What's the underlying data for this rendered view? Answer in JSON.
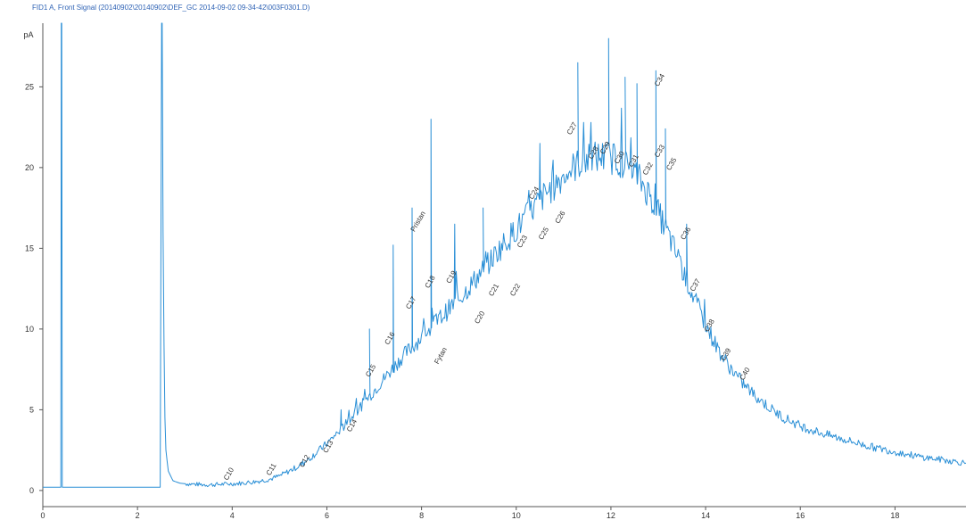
{
  "chart_data": {
    "type": "line",
    "title": "FID1 A, Front Signal (20140902\\20140902\\DEF_GC 2014-09-02 09-34-42\\003F0301.D)",
    "ylabel": "pA",
    "xlabel": "",
    "xlim": [
      0,
      19.5
    ],
    "ylim": [
      -1,
      28.5
    ],
    "x_ticks": [
      0,
      2,
      4,
      6,
      8,
      10,
      12,
      14,
      16,
      18
    ],
    "y_ticks": [
      0,
      5,
      10,
      15,
      20,
      25
    ],
    "grid": false,
    "series": [
      {
        "color": "#2a8fd6",
        "x": [
          0.0,
          0.35,
          0.38,
          0.39,
          0.4,
          0.41,
          0.45,
          2.48,
          2.51,
          2.52,
          2.54,
          2.56,
          2.58,
          2.6,
          2.65,
          2.75,
          2.9,
          3.1,
          3.5,
          3.9,
          4.2,
          4.5,
          4.8,
          5.0,
          5.2,
          5.4,
          5.6,
          5.8,
          6.0,
          6.2,
          6.4,
          6.6,
          6.8,
          7.0,
          7.2,
          7.4,
          7.6,
          7.8,
          8.0,
          8.2,
          8.4,
          8.6,
          8.8,
          9.0,
          9.2,
          9.4,
          9.6,
          9.8,
          10.0,
          10.2,
          10.4,
          10.6,
          10.8,
          11.0,
          11.2,
          11.4,
          11.6,
          11.8,
          12.0,
          12.2,
          12.4,
          12.6,
          12.8,
          13.0,
          13.2,
          13.4,
          13.6,
          13.8,
          14.0,
          14.2,
          14.4,
          14.6,
          14.8,
          15.0,
          15.2,
          15.4,
          15.6,
          15.8,
          16.0,
          16.5,
          17.0,
          17.5,
          18.0,
          18.5,
          19.0,
          19.5
        ],
        "y": [
          0.2,
          0.2,
          0.2,
          31,
          31,
          0.2,
          0.2,
          0.2,
          30,
          30,
          16,
          9,
          4.5,
          2.5,
          1.2,
          0.6,
          0.45,
          0.4,
          0.35,
          0.4,
          0.45,
          0.55,
          0.7,
          0.9,
          1.2,
          1.5,
          1.9,
          2.4,
          2.9,
          3.5,
          4.1,
          4.8,
          5.5,
          6.2,
          6.9,
          7.6,
          8.3,
          8.9,
          9.5,
          10.1,
          10.7,
          11.3,
          11.9,
          12.6,
          13.3,
          14.0,
          14.8,
          15.5,
          16.2,
          16.9,
          17.6,
          18.3,
          18.9,
          19.5,
          20.0,
          20.4,
          20.6,
          20.7,
          20.6,
          20.4,
          20.0,
          19.3,
          18.4,
          17.2,
          15.9,
          14.5,
          13.0,
          11.6,
          10.3,
          9.1,
          8.1,
          7.3,
          6.6,
          6.0,
          5.5,
          5.0,
          4.6,
          4.3,
          4.0,
          3.5,
          3.1,
          2.7,
          2.4,
          2.1,
          1.9,
          1.7
        ]
      }
    ],
    "peaks": [
      {
        "x": 8.2,
        "y": 23.0
      },
      {
        "x": 7.8,
        "y": 17.5
      },
      {
        "x": 7.4,
        "y": 15.2
      },
      {
        "x": 6.9,
        "y": 10.0
      },
      {
        "x": 11.3,
        "y": 26.5
      },
      {
        "x": 11.95,
        "y": 28.0
      },
      {
        "x": 12.3,
        "y": 25.6
      },
      {
        "x": 12.55,
        "y": 25.2
      },
      {
        "x": 12.95,
        "y": 26.0
      },
      {
        "x": 13.15,
        "y": 22.4
      },
      {
        "x": 10.5,
        "y": 21.5
      },
      {
        "x": 9.3,
        "y": 17.5
      },
      {
        "x": 8.7,
        "y": 16.5
      },
      {
        "x": 6.3,
        "y": 5.0
      },
      {
        "x": 13.6,
        "y": 16.5
      }
    ],
    "peak_labels": [
      {
        "text": "C10",
        "x": 3.9,
        "y": 0.6
      },
      {
        "text": "C11",
        "x": 4.8,
        "y": 0.9
      },
      {
        "text": "C12",
        "x": 5.5,
        "y": 1.4
      },
      {
        "text": "C13",
        "x": 6.0,
        "y": 2.3
      },
      {
        "text": "C14",
        "x": 6.5,
        "y": 3.6
      },
      {
        "text": "C15",
        "x": 6.9,
        "y": 7.0
      },
      {
        "text": "C16",
        "x": 7.3,
        "y": 9.0
      },
      {
        "text": "C17",
        "x": 7.75,
        "y": 11.2
      },
      {
        "text": "Pristan",
        "x": 7.85,
        "y": 16.0
      },
      {
        "text": "C18",
        "x": 8.15,
        "y": 12.5
      },
      {
        "text": "Fytan",
        "x": 8.35,
        "y": 7.8
      },
      {
        "text": "C19",
        "x": 8.6,
        "y": 12.8
      },
      {
        "text": "C20",
        "x": 9.2,
        "y": 10.3
      },
      {
        "text": "C21",
        "x": 9.5,
        "y": 12.0
      },
      {
        "text": "C22",
        "x": 9.95,
        "y": 12.0
      },
      {
        "text": "C23",
        "x": 10.1,
        "y": 15.0
      },
      {
        "text": "C24",
        "x": 10.35,
        "y": 18.0
      },
      {
        "text": "C25",
        "x": 10.55,
        "y": 15.5
      },
      {
        "text": "C26",
        "x": 10.9,
        "y": 16.5
      },
      {
        "text": "C27",
        "x": 11.15,
        "y": 22.0
      },
      {
        "text": "C28",
        "x": 11.6,
        "y": 20.5
      },
      {
        "text": "C29",
        "x": 11.85,
        "y": 20.8
      },
      {
        "text": "C30",
        "x": 12.15,
        "y": 20.2
      },
      {
        "text": "C31",
        "x": 12.45,
        "y": 20.0
      },
      {
        "text": "C32",
        "x": 12.75,
        "y": 19.5
      },
      {
        "text": "C33",
        "x": 13.0,
        "y": 20.6
      },
      {
        "text": "C34",
        "x": 13.0,
        "y": 25.0
      },
      {
        "text": "C35",
        "x": 13.25,
        "y": 19.8
      },
      {
        "text": "C36",
        "x": 13.55,
        "y": 15.5
      },
      {
        "text": "C37",
        "x": 13.75,
        "y": 12.3
      },
      {
        "text": "C38",
        "x": 14.05,
        "y": 9.8
      },
      {
        "text": "C39",
        "x": 14.4,
        "y": 8.0
      },
      {
        "text": "C40",
        "x": 14.8,
        "y": 6.8
      }
    ]
  },
  "colors": {
    "signal": "#2a8fd6",
    "title": "#2f63b5",
    "axis": "#555555"
  }
}
